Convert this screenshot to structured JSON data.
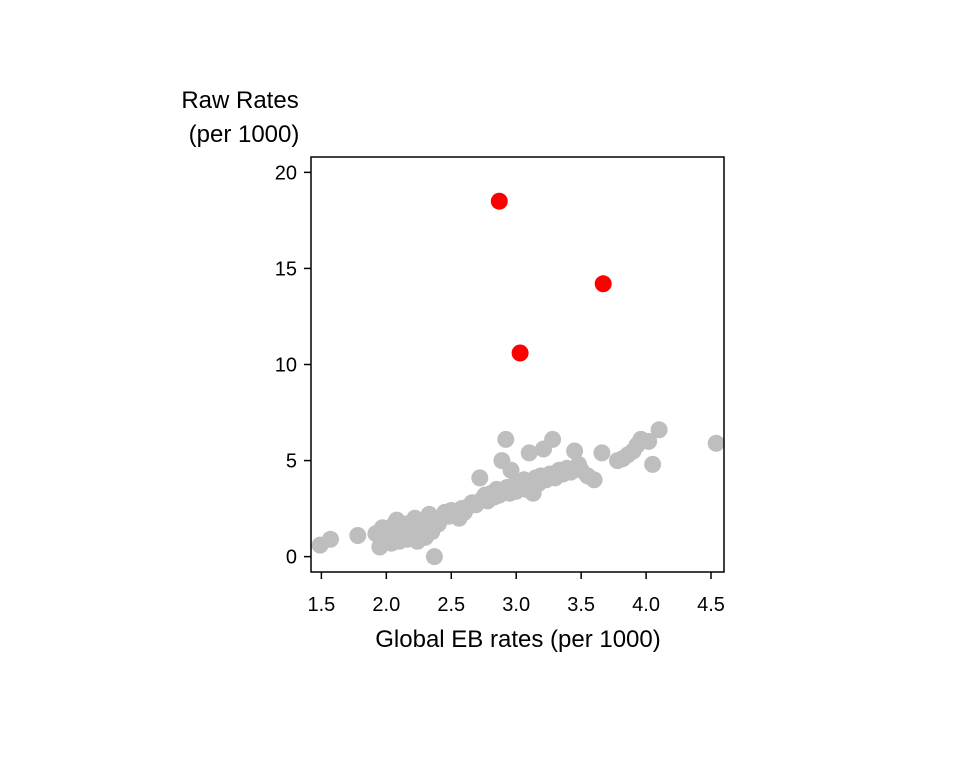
{
  "chart_data": {
    "type": "scatter",
    "title": "",
    "ylabel_line1": "Raw Rates",
    "ylabel_line2": "(per 1000)",
    "xlabel": "Global EB rates (per 1000)",
    "xlim": [
      1.42,
      4.6
    ],
    "ylim": [
      -0.8,
      20.8
    ],
    "xticks": [
      1.5,
      2.0,
      2.5,
      3.0,
      3.5,
      4.0,
      4.5
    ],
    "xtick_labels": [
      "1.5",
      "2.0",
      "2.5",
      "3.0",
      "3.5",
      "4.0",
      "4.5"
    ],
    "yticks": [
      0,
      5,
      10,
      15,
      20
    ],
    "ytick_labels": [
      "0",
      "5",
      "10",
      "15",
      "20"
    ],
    "grid": false,
    "legend": "none",
    "colors": {
      "normal": "#bebebe",
      "outlier": "#ff0000"
    },
    "series": [
      {
        "color_key": "normal",
        "points": [
          [
            1.49,
            0.6
          ],
          [
            1.57,
            0.9
          ],
          [
            1.78,
            1.1
          ],
          [
            1.92,
            1.2
          ],
          [
            1.95,
            0.5
          ],
          [
            1.97,
            1.5
          ],
          [
            2.0,
            0.9
          ],
          [
            2.02,
            1.3
          ],
          [
            2.04,
            0.7
          ],
          [
            2.05,
            1.6
          ],
          [
            2.07,
            1.1
          ],
          [
            2.08,
            1.9
          ],
          [
            2.1,
            0.8
          ],
          [
            2.12,
            1.4
          ],
          [
            2.13,
            1.0
          ],
          [
            2.15,
            1.7
          ],
          [
            2.16,
            0.9
          ],
          [
            2.18,
            1.3
          ],
          [
            2.2,
            1.8
          ],
          [
            2.21,
            1.1
          ],
          [
            2.22,
            2.0
          ],
          [
            2.24,
            0.8
          ],
          [
            2.25,
            1.5
          ],
          [
            2.27,
            1.2
          ],
          [
            2.29,
            1.9
          ],
          [
            2.3,
            1.0
          ],
          [
            2.32,
            1.6
          ],
          [
            2.33,
            2.2
          ],
          [
            2.35,
            1.3
          ],
          [
            2.37,
            0.0
          ],
          [
            2.38,
            1.9
          ],
          [
            2.4,
            1.7
          ],
          [
            2.42,
            2.0
          ],
          [
            2.45,
            2.3
          ],
          [
            2.48,
            2.1
          ],
          [
            2.5,
            2.4
          ],
          [
            2.53,
            2.2
          ],
          [
            2.56,
            2.0
          ],
          [
            2.58,
            2.5
          ],
          [
            2.6,
            2.3
          ],
          [
            2.63,
            2.6
          ],
          [
            2.66,
            2.8
          ],
          [
            2.69,
            2.7
          ],
          [
            2.72,
            4.1
          ],
          [
            2.74,
            3.0
          ],
          [
            2.76,
            3.2
          ],
          [
            2.78,
            2.9
          ],
          [
            2.81,
            3.3
          ],
          [
            2.83,
            3.1
          ],
          [
            2.85,
            3.5
          ],
          [
            2.87,
            3.2
          ],
          [
            2.89,
            5.0
          ],
          [
            2.9,
            3.4
          ],
          [
            2.92,
            6.1
          ],
          [
            2.93,
            3.6
          ],
          [
            2.95,
            3.3
          ],
          [
            2.96,
            4.5
          ],
          [
            2.98,
            3.7
          ],
          [
            3.0,
            3.4
          ],
          [
            3.02,
            3.8
          ],
          [
            3.04,
            3.6
          ],
          [
            3.06,
            4.0
          ],
          [
            3.08,
            3.5
          ],
          [
            3.1,
            5.4
          ],
          [
            3.11,
            3.9
          ],
          [
            3.13,
            3.3
          ],
          [
            3.15,
            4.1
          ],
          [
            3.17,
            3.8
          ],
          [
            3.19,
            4.2
          ],
          [
            3.21,
            5.6
          ],
          [
            3.23,
            4.0
          ],
          [
            3.26,
            4.3
          ],
          [
            3.28,
            6.1
          ],
          [
            3.3,
            4.1
          ],
          [
            3.33,
            4.5
          ],
          [
            3.36,
            4.3
          ],
          [
            3.39,
            4.6
          ],
          [
            3.42,
            4.4
          ],
          [
            3.45,
            5.5
          ],
          [
            3.48,
            4.8
          ],
          [
            3.5,
            4.5
          ],
          [
            3.55,
            4.2
          ],
          [
            3.6,
            4.0
          ],
          [
            3.66,
            5.4
          ],
          [
            3.78,
            5.0
          ],
          [
            3.82,
            5.1
          ],
          [
            3.86,
            5.3
          ],
          [
            3.9,
            5.5
          ],
          [
            3.93,
            5.8
          ],
          [
            3.96,
            6.1
          ],
          [
            4.02,
            6.0
          ],
          [
            4.05,
            4.8
          ],
          [
            4.1,
            6.6
          ],
          [
            4.54,
            5.9
          ]
        ]
      },
      {
        "color_key": "outlier",
        "points": [
          [
            2.87,
            18.5
          ],
          [
            3.03,
            10.6
          ],
          [
            3.67,
            14.2
          ]
        ]
      }
    ]
  }
}
